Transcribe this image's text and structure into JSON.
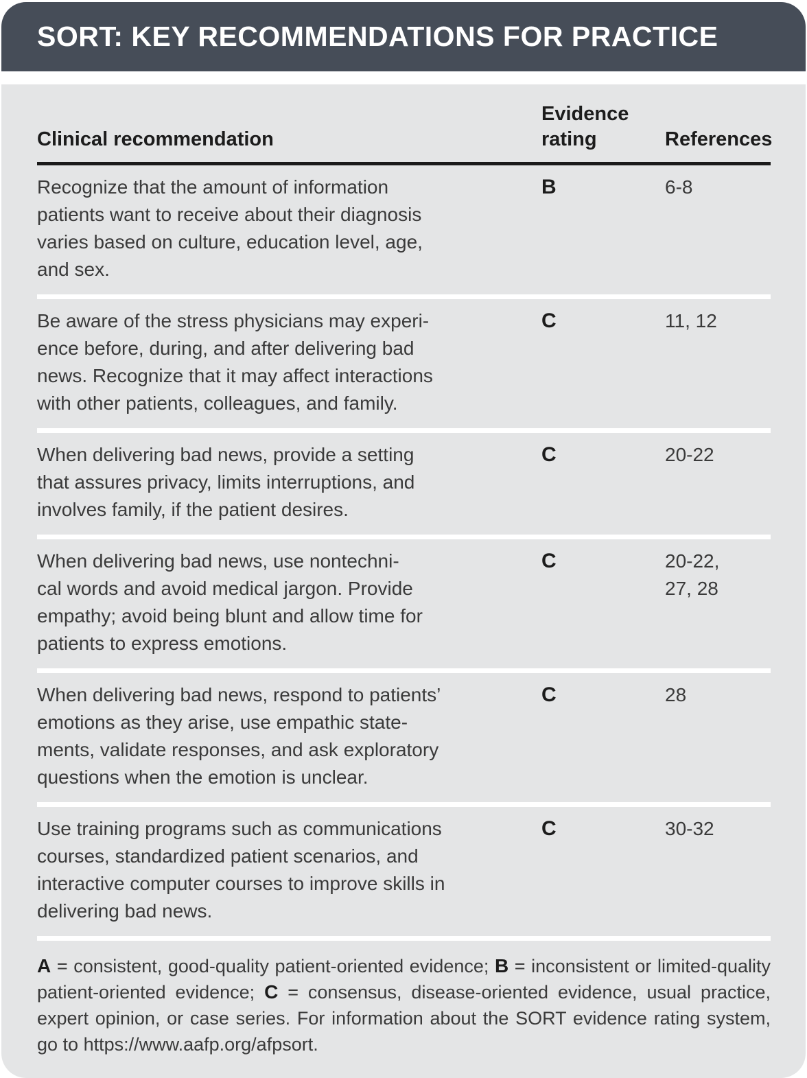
{
  "title": "SORT: KEY RECOMMENDATIONS FOR PRACTICE",
  "columns": {
    "recommendation": "Clinical recommendation",
    "evidence_rating": "Evidence\nrating",
    "references": "References"
  },
  "rows": [
    {
      "recommendation": "Recognize that the amount of information\npatients want to receive about their diagnosis\nvaries based on culture, education level, age,\nand sex.",
      "rating": "B",
      "references": "6-8"
    },
    {
      "recommendation": "Be aware of the stress physicians may experi-\nence before, during, and after delivering bad\nnews. Recognize that it may affect interactions\nwith other patients, colleagues, and family.",
      "rating": "C",
      "references": "11, 12"
    },
    {
      "recommendation": "When delivering bad news, provide a setting\nthat assures privacy, limits interruptions, and\ninvolves family, if the patient desires.",
      "rating": "C",
      "references": "20-22"
    },
    {
      "recommendation": "When delivering bad news, use nontechni-\ncal words and avoid medical jargon. Provide\nempathy; avoid being blunt and allow time for\npatients to express emotions.",
      "rating": "C",
      "references": "20-22,\n27, 28"
    },
    {
      "recommendation": "When delivering bad news, respond to patients’\nemotions as they arise, use empathic state-\nments, validate responses, and ask exploratory\nquestions when the emotion is unclear.",
      "rating": "C",
      "references": "28"
    },
    {
      "recommendation": "Use training programs such as communications\ncourses, standardized patient scenarios, and\ninteractive computer courses to improve skills in\ndelivering bad news.",
      "rating": "C",
      "references": "30-32"
    }
  ],
  "footnote": {
    "segments": [
      {
        "text": "A",
        "bold": true
      },
      {
        "text": " = consistent, good-quality patient-oriented evidence; ",
        "bold": false
      },
      {
        "text": "B",
        "bold": true
      },
      {
        "text": " = inconsistent or limited-quality patient-oriented evidence; ",
        "bold": false
      },
      {
        "text": "C",
        "bold": true
      },
      {
        "text": " = consensus, disease-oriented evi­dence, usual practice, expert opinion, or case series. For information about the SORT evidence rating system, go to ",
        "bold": false
      },
      {
        "text": "https://www.aafp.org/afpsort",
        "bold": false,
        "url": true
      },
      {
        "text": ".",
        "bold": false
      }
    ]
  },
  "colors": {
    "header_bg": "#464D58",
    "body_bg": "#E4E5E6",
    "header_text": "#FFFFFF",
    "rule": "#1A1A1A",
    "row_separator": "#FFFFFF",
    "body_text": "#3A3A3A"
  }
}
